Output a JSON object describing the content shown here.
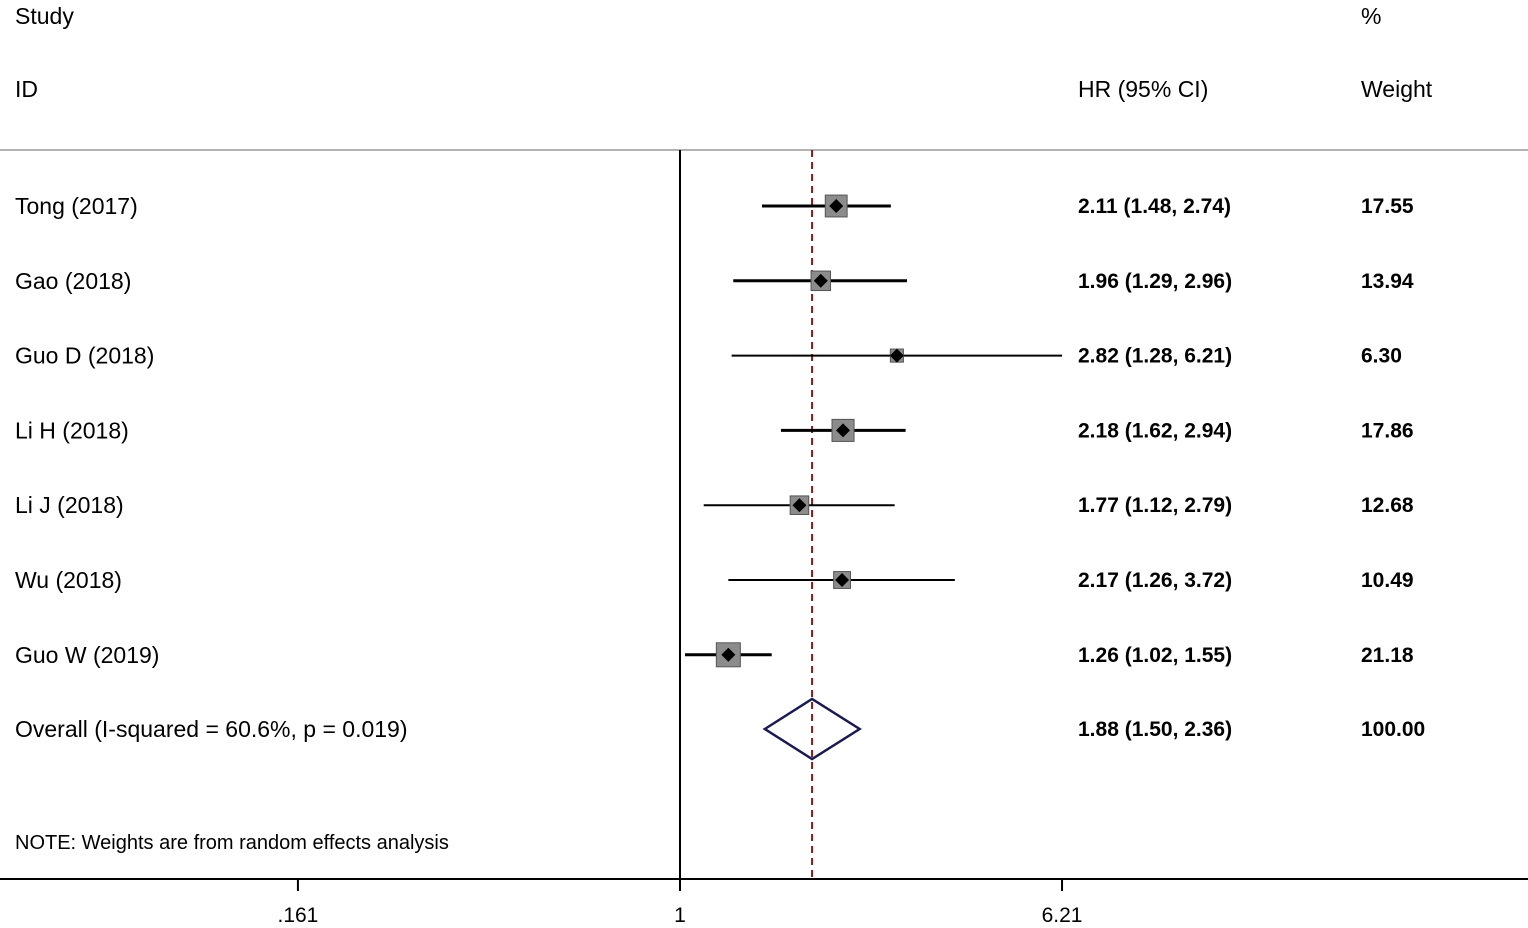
{
  "header": {
    "study_label": "Study",
    "id_label": "ID",
    "estimate_label": "HR (95% CI)",
    "pct_label": "%",
    "weight_label": "Weight"
  },
  "note": "NOTE: Weights are from random effects analysis",
  "colors": {
    "text": "#000000",
    "ci_line": "#000000",
    "weight_box": "#8c8c8c",
    "point": "#000000",
    "null_line": "#000000",
    "overall_line": "#8b1a1a",
    "overall_diamond": "#1a1a4e",
    "separator": "#999999"
  },
  "chart_data": {
    "type": "forest",
    "scale": "log",
    "x_ticks": [
      {
        "value": 0.161,
        "label": ".161"
      },
      {
        "value": 1,
        "label": "1"
      },
      {
        "value": 6.21,
        "label": "6.21"
      }
    ],
    "null_value": 1,
    "studies": [
      {
        "name": "Tong (2017)",
        "hr": 2.11,
        "lower": 1.48,
        "upper": 2.74,
        "label": "2.11 (1.48, 2.74)",
        "weight": 17.55,
        "weight_label": "17.55"
      },
      {
        "name": "Gao (2018)",
        "hr": 1.96,
        "lower": 1.29,
        "upper": 2.96,
        "label": "1.96 (1.29, 2.96)",
        "weight": 13.94,
        "weight_label": "13.94"
      },
      {
        "name": "Guo D (2018)",
        "hr": 2.82,
        "lower": 1.28,
        "upper": 6.21,
        "label": "2.82 (1.28, 6.21)",
        "weight": 6.3,
        "weight_label": "6.30"
      },
      {
        "name": "Li H (2018)",
        "hr": 2.18,
        "lower": 1.62,
        "upper": 2.94,
        "label": "2.18 (1.62, 2.94)",
        "weight": 17.86,
        "weight_label": "17.86"
      },
      {
        "name": "Li J (2018)",
        "hr": 1.77,
        "lower": 1.12,
        "upper": 2.79,
        "label": "1.77 (1.12, 2.79)",
        "weight": 12.68,
        "weight_label": "12.68"
      },
      {
        "name": "Wu (2018)",
        "hr": 2.17,
        "lower": 1.26,
        "upper": 3.72,
        "label": "2.17 (1.26, 3.72)",
        "weight": 10.49,
        "weight_label": "10.49"
      },
      {
        "name": "Guo W (2019)",
        "hr": 1.26,
        "lower": 1.02,
        "upper": 1.55,
        "label": "1.26 (1.02, 1.55)",
        "weight": 21.18,
        "weight_label": "21.18"
      }
    ],
    "overall": {
      "name": "Overall  (I-squared = 60.6%, p = 0.019)",
      "hr": 1.88,
      "lower": 1.5,
      "upper": 2.36,
      "label": "1.88 (1.50, 2.36)",
      "weight_label": "100.00"
    }
  }
}
